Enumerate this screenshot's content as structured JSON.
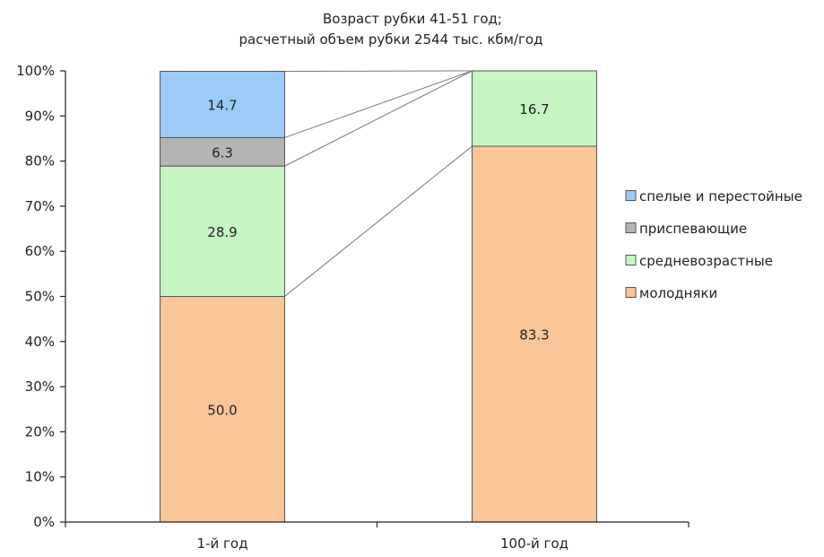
{
  "chart_data": {
    "type": "bar",
    "stacked": true,
    "percent": true,
    "title": "Возраст рубки 41-51 год;",
    "subtitle": "расчетный объем рубки 2544 тыс. кбм/год",
    "categories": [
      "1-й год",
      "100-й год"
    ],
    "series": [
      {
        "name": "молодняки",
        "color": "#fac597",
        "values": [
          50.0,
          83.3
        ],
        "labels": [
          "50.0",
          "83.3"
        ]
      },
      {
        "name": "средневозрастные",
        "color": "#c6f7c3",
        "values": [
          28.9,
          16.7
        ],
        "labels": [
          "28.9",
          "16.7"
        ]
      },
      {
        "name": "приспевающие",
        "color": "#b4b4b4",
        "values": [
          6.3,
          0
        ],
        "labels": [
          "6.3",
          ""
        ]
      },
      {
        "name": "спелые и перестойные",
        "color": "#9ccbf8",
        "values": [
          14.7,
          0
        ],
        "labels": [
          "14.7",
          ""
        ]
      }
    ],
    "y_ticks": [
      "0%",
      "10%",
      "20%",
      "30%",
      "40%",
      "50%",
      "60%",
      "70%",
      "80%",
      "90%",
      "100%"
    ],
    "ylim": [
      0,
      100
    ],
    "xlabel": "",
    "ylabel": "",
    "grid": false,
    "series_lines": true,
    "legend_position": "right",
    "legend_order": [
      "спелые и перестойные",
      "приспевающие",
      "средневозрастные",
      "молодняки"
    ]
  }
}
